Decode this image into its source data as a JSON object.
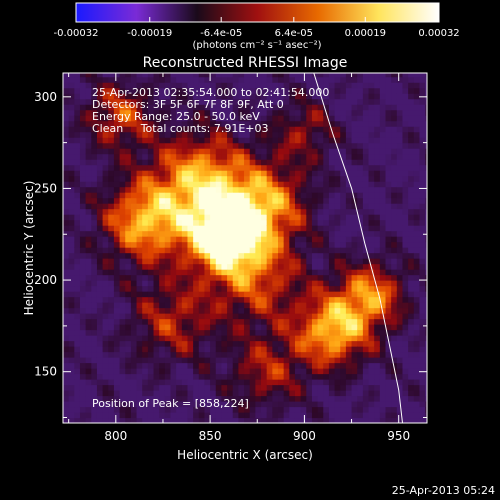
{
  "colorbar": {
    "ticks": [
      "-0.00032",
      "-0.00019",
      "-6.4e-05",
      "6.4e-05",
      "0.00019",
      "0.00032"
    ],
    "units": "(photons cm⁻² s⁻¹ asec⁻²)",
    "colors": [
      "#1a1aff",
      "#7a2bd6",
      "#1a0a1a",
      "#a01010",
      "#e86a00",
      "#ffe45c",
      "#ffffff"
    ]
  },
  "plot": {
    "info_lines": [
      "25-Apr-2013 02:35:54.000 to 02:41:54.000",
      "Detectors: 3F 5F 6F 7F 8F 9F, Att 0",
      "Energy Range: 25.0 - 50.0 keV",
      "Clean     Total counts: 7.91E+03"
    ],
    "peak_label": "Position of Peak = [858,224]"
  },
  "footer": {
    "timestamp": "25-Apr-2013 05:24"
  },
  "chart_data": {
    "type": "heatmap",
    "title": "Reconstructed RHESSI Image",
    "xlabel": "Heliocentric X (arcsec)",
    "ylabel": "Heliocentric Y (arcsec)",
    "xlim": [
      772,
      965
    ],
    "ylim": [
      122,
      313
    ],
    "xticks": [
      800,
      850,
      900,
      950
    ],
    "yticks": [
      150,
      200,
      250,
      300
    ],
    "value_range": [
      -0.00032,
      0.00032
    ],
    "peak": [
      858,
      224
    ],
    "limb_curve": [
      [
        905,
        313
      ],
      [
        915,
        280
      ],
      [
        925,
        250
      ],
      [
        932,
        220
      ],
      [
        940,
        190
      ],
      [
        945,
        165
      ],
      [
        950,
        140
      ],
      [
        952,
        122
      ]
    ],
    "sources": [
      {
        "x": 858,
        "y": 224,
        "sigma": 14,
        "amp": 1.0
      },
      {
        "x": 845,
        "y": 255,
        "sigma": 18,
        "amp": 0.72
      },
      {
        "x": 815,
        "y": 232,
        "sigma": 16,
        "amp": 0.72
      },
      {
        "x": 880,
        "y": 242,
        "sigma": 16,
        "amp": 0.62
      },
      {
        "x": 915,
        "y": 172,
        "sigma": 14,
        "amp": 0.75
      },
      {
        "x": 935,
        "y": 192,
        "sigma": 13,
        "amp": 0.62
      },
      {
        "x": 875,
        "y": 200,
        "sigma": 18,
        "amp": 0.48
      },
      {
        "x": 802,
        "y": 290,
        "sigma": 13,
        "amp": 0.5
      },
      {
        "x": 830,
        "y": 178,
        "sigma": 16,
        "amp": 0.42
      },
      {
        "x": 880,
        "y": 150,
        "sigma": 14,
        "amp": 0.4
      },
      {
        "x": 900,
        "y": 282,
        "sigma": 12,
        "amp": 0.35
      }
    ]
  }
}
